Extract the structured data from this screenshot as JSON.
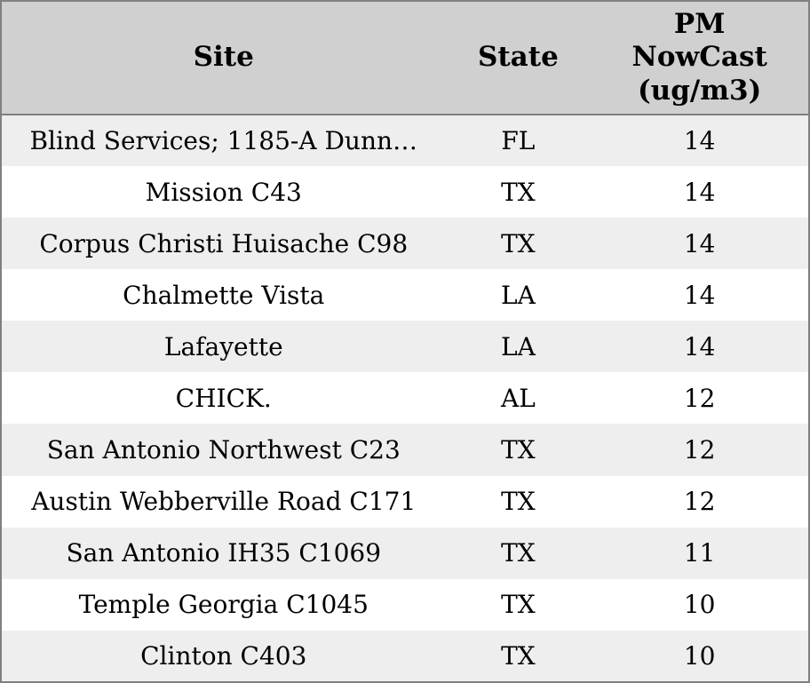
{
  "colors": {
    "border": "#808080",
    "header_bg": "#d0d0d0",
    "row_bg": "#ffffff",
    "row_alt_bg": "#eeeeee",
    "text": "#000000"
  },
  "chart_data": {
    "type": "table",
    "title": "",
    "columns": [
      "Site",
      "State",
      "PM NowCast (ug/m3)"
    ],
    "header_display": [
      "Site",
      "State",
      "PM\nNowCast\n(ug/m3)"
    ],
    "rows": [
      [
        "Blind Services; 1185-A Dunn…",
        "FL",
        14
      ],
      [
        "Mission C43",
        "TX",
        14
      ],
      [
        "Corpus Christi Huisache C98",
        "TX",
        14
      ],
      [
        "Chalmette Vista",
        "LA",
        14
      ],
      [
        "Lafayette",
        "LA",
        14
      ],
      [
        "CHICK.",
        "AL",
        12
      ],
      [
        "San Antonio Northwest C23",
        "TX",
        12
      ],
      [
        "Austin Webberville Road C171",
        "TX",
        12
      ],
      [
        "San Antonio IH35 C1069",
        "TX",
        11
      ],
      [
        "Temple Georgia C1045",
        "TX",
        10
      ],
      [
        "Clinton C403",
        "TX",
        10
      ]
    ]
  }
}
